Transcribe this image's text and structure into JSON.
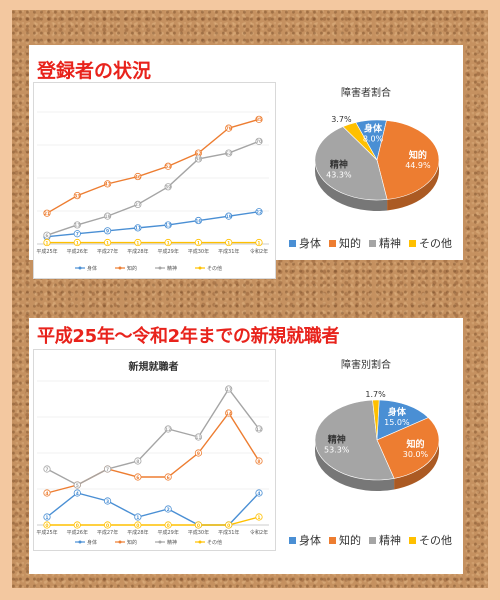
{
  "top": {
    "heading": "登録者の状況",
    "pie_title": "障害者割合"
  },
  "bottom": {
    "heading": "平成25年〜令和2年までの新規就職者",
    "line_title": "新規就職者",
    "pie_title": "障害別割合"
  },
  "colors": {
    "body": "#4a8fd4",
    "intellect": "#ed7d31",
    "mental": "#a5a5a5",
    "other": "#ffc000"
  },
  "chart_data": [
    {
      "type": "line",
      "categories": [
        "平成25年",
        "平成26年",
        "平成27年",
        "平成28年",
        "平成29年",
        "平成30年",
        "平成31年",
        "令和2年"
      ],
      "series": [
        {
          "name": "身体",
          "values": [
            5,
            7,
            9,
            11,
            13,
            16,
            19,
            22
          ]
        },
        {
          "name": "知的",
          "values": [
            21,
            33,
            41,
            46,
            53,
            62,
            79,
            85
          ]
        },
        {
          "name": "精神",
          "values": [
            6,
            13,
            19,
            27,
            39,
            58,
            62,
            70
          ]
        },
        {
          "name": "その他",
          "values": [
            1,
            1,
            1,
            1,
            1,
            1,
            1,
            1
          ]
        }
      ],
      "ylim": [
        0,
        90
      ]
    },
    {
      "type": "pie",
      "labels": [
        "身体",
        "知的",
        "精神",
        "その他"
      ],
      "values": [
        8.0,
        44.9,
        43.3,
        3.7
      ],
      "value_labels": [
        "8.0%",
        "44.9%",
        "43.3%",
        "3.7%"
      ],
      "legend": "bottom"
    },
    {
      "type": "line",
      "categories": [
        "平成25年",
        "平成26年",
        "平成27年",
        "平成28年",
        "平成29年",
        "平成30年",
        "平成31年",
        "令和2年"
      ],
      "series": [
        {
          "name": "身体",
          "values": [
            1,
            4,
            3,
            1,
            2,
            0,
            0,
            4
          ]
        },
        {
          "name": "知的",
          "values": [
            4,
            5,
            7,
            6,
            6,
            9,
            14,
            8
          ]
        },
        {
          "name": "精神",
          "values": [
            7,
            5,
            7,
            8,
            12,
            11,
            17,
            12
          ]
        },
        {
          "name": "その他",
          "values": [
            0,
            0,
            0,
            0,
            0,
            0,
            0,
            1
          ]
        }
      ],
      "ylim": [
        0,
        18
      ]
    },
    {
      "type": "pie",
      "labels": [
        "身体",
        "知的",
        "精神",
        "その他"
      ],
      "values": [
        15.0,
        30.0,
        53.3,
        1.7
      ],
      "value_labels": [
        "15.0%",
        "30.0%",
        "53.3%",
        "1.7%"
      ],
      "legend": "bottom"
    }
  ]
}
